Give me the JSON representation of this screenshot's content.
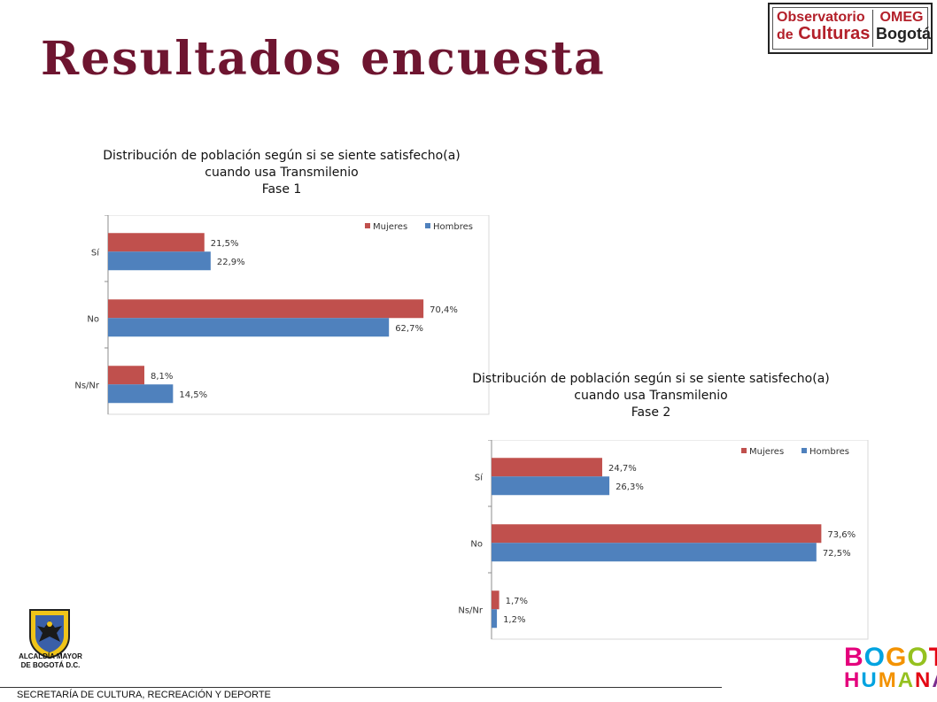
{
  "page": {
    "title": "Resultados encuesta",
    "footer": "SECRETARÍA DE CULTURA, RECREACIÓN Y DEPORTE"
  },
  "logos": {
    "observatorio_line1": "Observatorio",
    "observatorio_line2_a": "de",
    "observatorio_line2_b": "Culturas",
    "omeg": "OMEG",
    "bogota": "Bogotá",
    "alcaldia_line1": "ALCALDÍA MAYOR",
    "alcaldia_line2": "DE BOGOTÁ D.C.",
    "bh_line1": "BOGOTÁ",
    "bh_line2": "HUMANA"
  },
  "colors": {
    "title": "#6e1530",
    "mujeres": "#c0504d",
    "hombres": "#4f81bd",
    "logo_red": "#b3202a"
  },
  "chart_data": [
    {
      "type": "bar",
      "orientation": "horizontal",
      "title_lines": [
        "Distribución de población según si se siente satisfecho(a)",
        "cuando usa Transmilenio",
        "Fase 1"
      ],
      "categories": [
        "Sí",
        "No",
        "Ns/Nr"
      ],
      "series": [
        {
          "name": "Mujeres",
          "values": [
            21.5,
            70.4,
            8.1
          ],
          "labels": [
            "21,5%",
            "70,4%",
            "8,1%"
          ]
        },
        {
          "name": "Hombres",
          "values": [
            22.9,
            62.7,
            14.5
          ],
          "labels": [
            "22,9%",
            "62,7%",
            "14,5%"
          ]
        }
      ],
      "xlim": [
        0,
        85
      ],
      "legend": "top-right",
      "grid": false
    },
    {
      "type": "bar",
      "orientation": "horizontal",
      "title_lines": [
        "Distribución de población según si se siente satisfecho(a)",
        "cuando usa Transmilenio",
        "Fase 2"
      ],
      "categories": [
        "Sí",
        "No",
        "Ns/Nr"
      ],
      "series": [
        {
          "name": "Mujeres",
          "values": [
            24.7,
            73.6,
            1.7
          ],
          "labels": [
            "24,7%",
            "73,6%",
            "1,7%"
          ]
        },
        {
          "name": "Hombres",
          "values": [
            26.3,
            72.5,
            1.2
          ],
          "labels": [
            "26,3%",
            "72,5%",
            "1,2%"
          ]
        }
      ],
      "xlim": [
        0,
        84
      ],
      "legend": "top-right",
      "grid": false
    }
  ]
}
